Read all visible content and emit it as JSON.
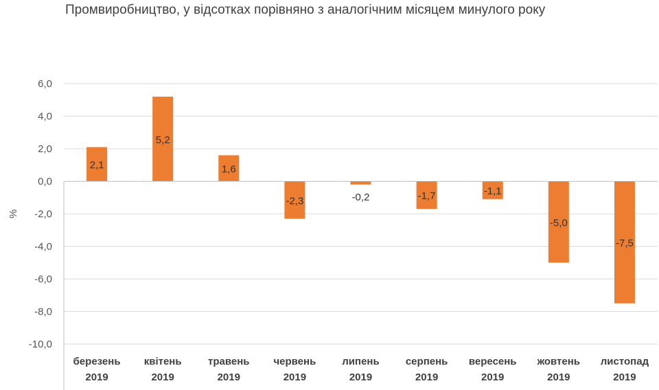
{
  "chart_data": {
    "type": "bar",
    "title": "Промвиробництво, у відсотках порівняно з аналогічним місяцем минулого року",
    "ylabel": "%",
    "xlabel": "",
    "ylim": [
      -10,
      6
    ],
    "yticks": [
      "6,0",
      "4,0",
      "2,0",
      "0,0",
      "-2,0",
      "-4,0",
      "-6,0",
      "-8,0",
      "-10,0"
    ],
    "ytick_values": [
      6,
      4,
      2,
      0,
      -2,
      -4,
      -6,
      -8,
      -10
    ],
    "grid": true,
    "legend": "none",
    "bar_color": "#ED7D31",
    "categories": [
      [
        "березень",
        "2019"
      ],
      [
        "квітень",
        "2019"
      ],
      [
        "травень",
        "2019"
      ],
      [
        "червень",
        "2019"
      ],
      [
        "липень",
        "2019"
      ],
      [
        "серпень",
        "2019"
      ],
      [
        "вересень",
        "2019"
      ],
      [
        "жовтень",
        "2019"
      ],
      [
        "листопад",
        "2019"
      ]
    ],
    "values": [
      2.1,
      5.2,
      1.6,
      -2.3,
      -0.2,
      -1.7,
      -1.1,
      -5.0,
      -7.5
    ],
    "value_labels": [
      "2,1",
      "5,2",
      "1,6",
      "-2,3",
      "-0,2",
      "-1,7",
      "-1,1",
      "-5,0",
      "-7,5"
    ]
  }
}
